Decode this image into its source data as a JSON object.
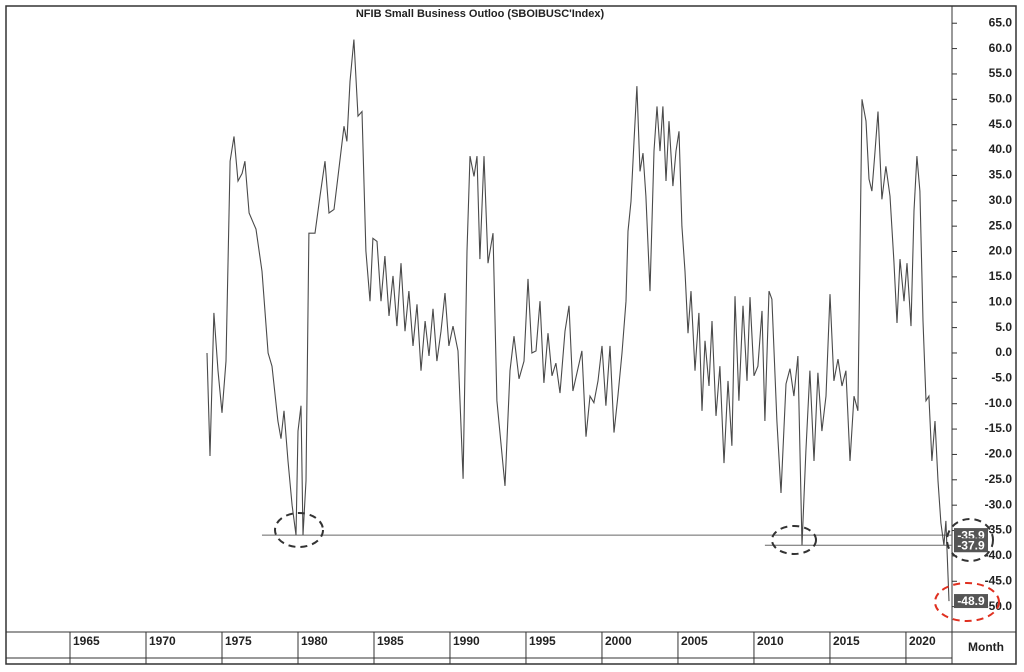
{
  "chart_data": {
    "type": "line",
    "title": "NFIB  Small  Business  Outloo  (SBOIBUSC'Index)",
    "title_color": "#3d4fe0",
    "x_label": "Month",
    "xlim": [
      1960.92,
      2023.03
    ],
    "ylim": [
      -55,
      68
    ],
    "xticks": [
      1965,
      1970,
      1975,
      1980,
      1985,
      1990,
      1995,
      2000,
      2005,
      2010,
      2015,
      2020
    ],
    "yticks": [
      {
        "value": 65,
        "label": "65.0"
      },
      {
        "value": 60,
        "label": "60.0"
      },
      {
        "value": 55,
        "label": "55.0"
      },
      {
        "value": 50,
        "label": "50.0"
      },
      {
        "value": 45,
        "label": "45.0"
      },
      {
        "value": 40,
        "label": "40.0"
      },
      {
        "value": 35,
        "label": "35.0"
      },
      {
        "value": 30,
        "label": "30.0"
      },
      {
        "value": 25,
        "label": "25.0"
      },
      {
        "value": 20,
        "label": "20.0"
      },
      {
        "value": 15,
        "label": "15.0"
      },
      {
        "value": 10,
        "label": "10.0"
      },
      {
        "value": 5,
        "label": "5.0"
      },
      {
        "value": 0,
        "label": "0.0"
      },
      {
        "value": -5,
        "label": "-5.0"
      },
      {
        "value": -10,
        "label": "-10.0"
      },
      {
        "value": -15,
        "label": "-15.0"
      },
      {
        "value": -20,
        "label": "-20.0"
      },
      {
        "value": -25,
        "label": "-25.0"
      },
      {
        "value": -30,
        "label": "-30.0"
      },
      {
        "value": -35,
        "label": "-35.0"
      },
      {
        "value": -40,
        "label": "-40.0"
      },
      {
        "value": -45,
        "label": "-45.0"
      },
      {
        "value": -50,
        "label": "-50.0"
      }
    ],
    "hlines": [
      {
        "y": -35.9,
        "x_start": 1977.63
      },
      {
        "y": -37.9,
        "x_start": 2010.72
      }
    ],
    "x": [
      1974.01,
      1974.21,
      1974.47,
      1974.74,
      1975.0,
      1975.26,
      1975.53,
      1975.79,
      1976.05,
      1976.32,
      1976.51,
      1976.78,
      1977.24,
      1977.63,
      1978.03,
      1978.29,
      1978.68,
      1978.88,
      1979.08,
      1979.34,
      1979.61,
      1979.87,
      1980.0,
      1980.2,
      1980.33,
      1980.53,
      1980.72,
      1981.12,
      1981.45,
      1981.78,
      1982.04,
      1982.37,
      1982.63,
      1983.03,
      1983.22,
      1983.42,
      1983.68,
      1983.95,
      1984.21,
      1984.47,
      1984.74,
      1984.93,
      1985.2,
      1985.46,
      1985.72,
      1985.99,
      1986.25,
      1986.51,
      1986.78,
      1987.04,
      1987.3,
      1987.57,
      1987.83,
      1988.09,
      1988.36,
      1988.62,
      1988.88,
      1989.14,
      1989.41,
      1989.67,
      1989.93,
      1990.2,
      1990.53,
      1990.86,
      1991.12,
      1991.32,
      1991.58,
      1991.78,
      1991.97,
      1992.24,
      1992.5,
      1992.83,
      1993.09,
      1993.62,
      1993.95,
      1994.21,
      1994.54,
      1994.87,
      1995.13,
      1995.39,
      1995.66,
      1995.92,
      1996.18,
      1996.45,
      1996.71,
      1996.97,
      1997.24,
      1997.57,
      1997.83,
      1998.09,
      1998.36,
      1998.68,
      1998.95,
      1999.21,
      1999.47,
      1999.74,
      2000.0,
      2000.26,
      2000.53,
      2000.79,
      2001.05,
      2001.32,
      2001.58,
      2001.71,
      2001.91,
      2002.11,
      2002.3,
      2002.5,
      2002.7,
      2002.89,
      2003.16,
      2003.42,
      2003.62,
      2003.82,
      2004.01,
      2004.21,
      2004.41,
      2004.67,
      2004.87,
      2005.07,
      2005.26,
      2005.46,
      2005.66,
      2005.86,
      2006.12,
      2006.38,
      2006.58,
      2006.78,
      2007.04,
      2007.24,
      2007.5,
      2007.76,
      2008.03,
      2008.29,
      2008.55,
      2008.75,
      2009.01,
      2009.28,
      2009.54,
      2009.74,
      2010.0,
      2010.26,
      2010.53,
      2010.72,
      2010.99,
      2011.18,
      2011.51,
      2011.78,
      2012.11,
      2012.37,
      2012.63,
      2012.89,
      2013.16,
      2013.42,
      2013.68,
      2013.95,
      2014.21,
      2014.47,
      2014.74,
      2015.0,
      2015.26,
      2015.53,
      2015.79,
      2016.05,
      2016.32,
      2016.58,
      2016.84,
      2017.11,
      2017.37,
      2017.57,
      2017.76,
      2017.96,
      2018.16,
      2018.42,
      2018.68,
      2018.95,
      2019.21,
      2019.41,
      2019.61,
      2019.87,
      2020.07,
      2020.33,
      2020.53,
      2020.72,
      2020.92,
      2021.12,
      2021.32,
      2021.51,
      2021.71,
      2021.91,
      2022.11,
      2022.3,
      2022.5,
      2022.63,
      2022.83
    ],
    "series": [
      {
        "name": "SBOIBUSC Index",
        "color": "#4a4a4a",
        "values": [
          0,
          -20.3,
          7.9,
          -3.5,
          -11.8,
          -1.6,
          37.8,
          42.7,
          33.9,
          35.4,
          37.8,
          27.6,
          24.4,
          16.1,
          0,
          -2.6,
          -13.4,
          -16.9,
          -11.4,
          -21.3,
          -30,
          -35.9,
          -15.4,
          -10.4,
          -35.9,
          -25.2,
          23.6,
          23.6,
          30.9,
          37.8,
          27.6,
          28.3,
          34.8,
          44.7,
          41.7,
          53.5,
          61.8,
          46.7,
          47.6,
          20.1,
          10.2,
          22.6,
          22.0,
          10.2,
          19.1,
          7.3,
          15.2,
          5.3,
          17.7,
          4.3,
          12.2,
          1.4,
          9.6,
          -3.5,
          6.3,
          -0.6,
          8.7,
          -1.6,
          4.3,
          11.8,
          1.4,
          5.3,
          0.4,
          -24.8,
          20.1,
          38.8,
          34.8,
          38.8,
          18.5,
          38.8,
          17.7,
          23.6,
          -9.4,
          -26.2,
          -3.5,
          3.3,
          -5.1,
          -1.6,
          14.6,
          0,
          0.4,
          10.2,
          -5.9,
          3.9,
          -4.5,
          -2.0,
          -7.9,
          4.3,
          9.3,
          -7.5,
          -3.9,
          0.4,
          -16.5,
          -8.5,
          -9.8,
          -5.5,
          1.4,
          -10.4,
          1.4,
          -15.7,
          -8.5,
          0,
          10.2,
          24.0,
          29.9,
          41.7,
          52.6,
          35.8,
          39.4,
          30.9,
          12.2,
          39.8,
          48.6,
          39.8,
          48.6,
          33.9,
          45.7,
          32.9,
          39.8,
          43.7,
          25.0,
          16.1,
          3.9,
          12.2,
          -3.5,
          7.9,
          -11.4,
          2.4,
          -6.5,
          6.3,
          -12.4,
          -2.6,
          -21.7,
          -5.5,
          -18.3,
          11.2,
          -9.4,
          9.3,
          -5.5,
          11.0,
          -4.5,
          -2.6,
          8.3,
          -13.4,
          12.2,
          10.6,
          -13.4,
          -27.6,
          -6.1,
          -3.1,
          -8.5,
          -0.6,
          -37.9,
          -19.3,
          -3.5,
          -21.3,
          -3.9,
          -15.4,
          -8.5,
          11.6,
          -5.5,
          -1.2,
          -6.5,
          -3.5,
          -21.3,
          -8.5,
          -11.4,
          50.0,
          45.7,
          34.3,
          31.9,
          39.4,
          47.6,
          30.3,
          36.8,
          30.9,
          18.1,
          5.9,
          18.5,
          10.2,
          17.7,
          5.3,
          28.0,
          38.8,
          31.9,
          6.3,
          -9.4,
          -8.5,
          -21.3,
          -13.4,
          -25.2,
          -33.5,
          -37.9,
          -33.1,
          -48.9
        ]
      }
    ]
  }
}
